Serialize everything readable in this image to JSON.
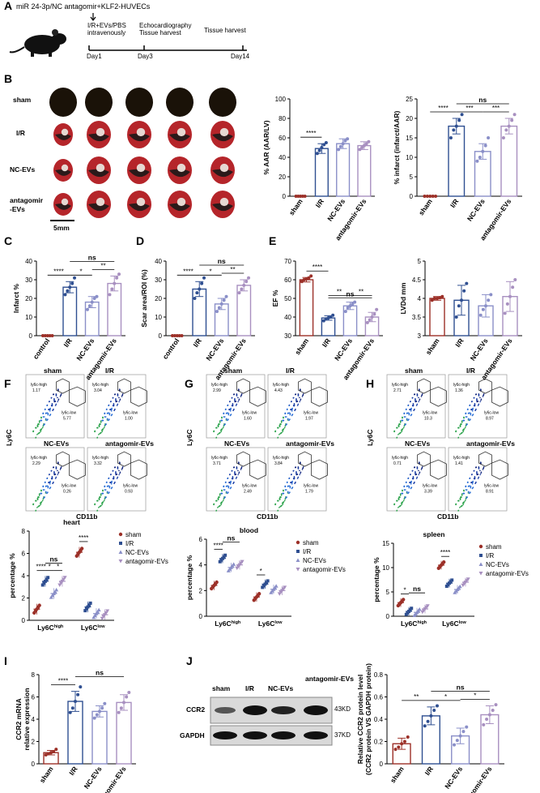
{
  "panel_labels": [
    "A",
    "B",
    "C",
    "D",
    "E",
    "F",
    "G",
    "H",
    "I",
    "J"
  ],
  "panel_a": {
    "title": "miR 24-3p/NC antagomir+KLF2-HUVECs",
    "step1_line1": "I/R+EVs/PBS",
    "step1_line2": "intravenously",
    "step2_line1": "Echocardiography",
    "step2_line2": "Tissue harvest",
    "step3": "Tissue harvest",
    "days": [
      "Day1",
      "Day3",
      "Day14"
    ]
  },
  "panel_b": {
    "row_labels": [
      "sham",
      "I/R",
      "NC-EVs",
      "antagomir",
      "-EVs"
    ],
    "scale_bar": "5mm"
  },
  "flow": {
    "x_label": "CD11b",
    "y_label": "Ly6C",
    "group_titles": [
      "sham",
      "I/R",
      "NC-EVs",
      "antagomir-EVs"
    ],
    "gate_high": "ly6c-high",
    "gate_low": "ly6c-low",
    "F": {
      "values": [
        "1.17",
        "5.77",
        "3.04",
        "1.00",
        "2.29",
        "0.26",
        "3.32",
        "0.93"
      ]
    },
    "G": {
      "values": [
        "2.99",
        "1.60",
        "4.43",
        "1.97",
        "3.71",
        "2.49",
        "3.84",
        "1.79"
      ]
    },
    "H": {
      "values": [
        "2.71",
        "10.3",
        "1.36",
        "8.97",
        "0.71",
        "3.39",
        "1.41",
        "8.91"
      ]
    }
  },
  "western": {
    "lanes": [
      "sham",
      "I/R",
      "NC-EVs",
      "antagomir-EVs"
    ],
    "bands": [
      "CCR2",
      "GAPDH"
    ],
    "kd": [
      "43KD",
      "37KD"
    ]
  },
  "chart_data": [
    {
      "id": "B_aar",
      "type": "bar",
      "categories": [
        "sham",
        "I/R",
        "NC-EVs",
        "antagomir-EVs"
      ],
      "values": [
        0,
        49,
        54,
        52
      ],
      "errors": [
        0,
        5,
        5,
        4
      ],
      "points": [
        [
          0,
          0,
          0,
          0,
          0
        ],
        [
          44,
          47,
          50,
          53,
          55
        ],
        [
          48,
          51,
          54,
          57,
          59
        ],
        [
          48,
          50,
          52,
          54,
          56
        ]
      ],
      "ylabel": "% AAR (AAR/LV)",
      "ylim": [
        0,
        100
      ],
      "ticks": [
        0,
        20,
        40,
        60,
        80,
        100
      ],
      "sig": [
        {
          "a": 0,
          "b": 1,
          "text": "****"
        }
      ]
    },
    {
      "id": "B_inf",
      "type": "bar",
      "categories": [
        "sham",
        "I/R",
        "NC-EVs",
        "antagomir-EVs"
      ],
      "values": [
        0,
        18,
        11.5,
        18
      ],
      "errors": [
        0,
        2,
        2,
        2
      ],
      "points": [
        [
          0,
          0,
          0,
          0,
          0
        ],
        [
          15,
          17,
          18,
          19.5,
          21
        ],
        [
          9,
          10,
          11.5,
          13,
          15
        ],
        [
          15,
          17,
          18,
          19.5,
          21
        ]
      ],
      "ylabel": "% infarct (infarct/AAR)",
      "ylim": [
        0,
        25
      ],
      "ticks": [
        0,
        5,
        10,
        15,
        20,
        25
      ],
      "sig": [
        {
          "a": 0,
          "b": 1,
          "text": "****"
        },
        {
          "a": 1,
          "b": 2,
          "text": "***"
        },
        {
          "a": 2,
          "b": 3,
          "text": "***"
        },
        {
          "a": 1,
          "b": 3,
          "text": "ns"
        }
      ]
    },
    {
      "id": "C",
      "type": "bar",
      "categories": [
        "control",
        "I/R",
        "NC-EVs",
        "antagomir-EVs"
      ],
      "values": [
        0,
        26,
        18,
        28
      ],
      "errors": [
        0,
        3,
        3,
        4
      ],
      "points": [
        [
          0,
          0,
          0,
          0,
          0
        ],
        [
          22,
          24,
          26,
          28,
          31
        ],
        [
          14,
          16,
          18,
          20,
          21
        ],
        [
          22,
          25,
          28,
          31,
          33
        ]
      ],
      "ylabel": "Infarct %",
      "ylim": [
        0,
        40
      ],
      "ticks": [
        0,
        10,
        20,
        30,
        40
      ],
      "sig": [
        {
          "a": 0,
          "b": 1,
          "text": "****"
        },
        {
          "a": 1,
          "b": 2,
          "text": "*"
        },
        {
          "a": 2,
          "b": 3,
          "text": "**"
        },
        {
          "a": 1,
          "b": 3,
          "text": "ns"
        }
      ]
    },
    {
      "id": "D",
      "type": "bar",
      "categories": [
        "control",
        "I/R",
        "NC-EVs",
        "antagomir-EVs"
      ],
      "values": [
        0,
        25,
        17,
        27
      ],
      "errors": [
        0,
        4,
        3,
        3
      ],
      "points": [
        [
          0,
          0,
          0,
          0,
          0
        ],
        [
          20,
          23,
          25,
          28,
          31
        ],
        [
          13,
          15,
          17,
          19,
          21
        ],
        [
          23,
          25,
          27,
          29,
          31
        ]
      ],
      "ylabel": "Scar area/ROI (%)",
      "ylim": [
        0,
        40
      ],
      "ticks": [
        0,
        10,
        20,
        30,
        40
      ],
      "sig": [
        {
          "a": 0,
          "b": 1,
          "text": "****"
        },
        {
          "a": 1,
          "b": 2,
          "text": "*"
        },
        {
          "a": 2,
          "b": 3,
          "text": "**"
        },
        {
          "a": 1,
          "b": 3,
          "text": "ns"
        }
      ]
    },
    {
      "id": "E_ef",
      "type": "bar",
      "categories": [
        "sham",
        "I/R",
        "NC-EVs",
        "antagomir-EVs"
      ],
      "values": [
        60,
        39.5,
        46,
        40
      ],
      "errors": [
        1.2,
        1.2,
        2,
        2.5
      ],
      "points": [
        [
          59,
          60,
          60.5,
          61,
          62
        ],
        [
          38,
          39,
          39.5,
          40,
          41
        ],
        [
          43,
          45,
          46,
          47,
          48
        ],
        [
          37,
          38.5,
          40,
          41.5,
          44
        ]
      ],
      "ylabel": "EF %",
      "ylim": [
        30,
        70
      ],
      "ticks": [
        30,
        40,
        50,
        60,
        70
      ],
      "sig": [
        {
          "a": 0,
          "b": 1,
          "text": "****"
        },
        {
          "a": 1,
          "b": 2,
          "text": "**"
        },
        {
          "a": 2,
          "b": 3,
          "text": "**"
        },
        {
          "a": 1,
          "b": 3,
          "text": "ns"
        }
      ]
    },
    {
      "id": "E_lvdd",
      "type": "bar",
      "categories": [
        "sham",
        "I/R",
        "NC-EVs",
        "antagomir-EVs"
      ],
      "values": [
        4.0,
        3.95,
        3.8,
        4.05
      ],
      "errors": [
        0.05,
        0.4,
        0.3,
        0.4
      ],
      "points": [
        [
          3.95,
          4.0,
          4.0,
          4.02,
          4.05
        ],
        [
          3.5,
          3.8,
          3.95,
          4.2,
          4.4
        ],
        [
          3.55,
          3.7,
          3.8,
          3.95,
          4.1
        ],
        [
          3.6,
          3.85,
          4.05,
          4.3,
          4.5
        ]
      ],
      "ylabel": "LVDd mm",
      "ylim": [
        3.0,
        5.0
      ],
      "ticks": [
        3.0,
        3.5,
        4.0,
        4.5,
        5.0
      ],
      "sig": []
    },
    {
      "id": "heart",
      "type": "scatter",
      "title": "heart",
      "groups": [
        "Ly6C^high",
        "Ly6C^low"
      ],
      "series": [
        {
          "name": "sham",
          "values": [
            1.0,
            6.1
          ]
        },
        {
          "name": "I/R",
          "values": [
            3.5,
            1.2
          ]
        },
        {
          "name": "NC-EVs",
          "values": [
            2.4,
            0.6
          ]
        },
        {
          "name": "antagomir-EVs",
          "values": [
            3.5,
            0.5
          ]
        }
      ],
      "ylabel": "percentage %",
      "ylim": [
        0,
        8
      ],
      "ticks": [
        0,
        2,
        4,
        6,
        8
      ],
      "sig": [
        {
          "g": 0,
          "a": 0,
          "b": 1,
          "text": "****"
        },
        {
          "g": 0,
          "a": 1,
          "b": 2,
          "text": "*"
        },
        {
          "g": 0,
          "a": 2,
          "b": 3,
          "text": "*"
        },
        {
          "g": 0,
          "a": 1,
          "b": 3,
          "text": "ns"
        },
        {
          "g": 1,
          "a": 0,
          "b": 1,
          "text": "****"
        }
      ]
    },
    {
      "id": "blood",
      "type": "scatter",
      "title": "blood",
      "groups": [
        "Ly6C^high",
        "Ly6C^low"
      ],
      "series": [
        {
          "name": "sham",
          "values": [
            2.4,
            1.5
          ]
        },
        {
          "name": "I/R",
          "values": [
            4.5,
            2.5
          ]
        },
        {
          "name": "NC-EVs",
          "values": [
            3.8,
            2.1
          ]
        },
        {
          "name": "antagomir-EVs",
          "values": [
            4.0,
            2.0
          ]
        }
      ],
      "ylabel": "percentage %",
      "ylim": [
        0,
        6
      ],
      "ticks": [
        0,
        2,
        4,
        6
      ],
      "sig": [
        {
          "g": 0,
          "a": 0,
          "b": 1,
          "text": "****"
        },
        {
          "g": 0,
          "a": 1,
          "b": 3,
          "text": "ns"
        },
        {
          "g": 1,
          "a": 0,
          "b": 1,
          "text": "*"
        }
      ]
    },
    {
      "id": "spleen",
      "type": "scatter",
      "title": "spleen",
      "groups": [
        "Ly6C^high",
        "Ly6C^low"
      ],
      "series": [
        {
          "name": "sham",
          "values": [
            2.8,
            10.5
          ]
        },
        {
          "name": "I/R",
          "values": [
            1.0,
            6.8
          ]
        },
        {
          "name": "NC-EVs",
          "values": [
            0.8,
            5.5
          ]
        },
        {
          "name": "antagomir-EVs",
          "values": [
            1.5,
            7.0
          ]
        }
      ],
      "ylabel": "percentage %",
      "ylim": [
        0,
        15
      ],
      "ticks": [
        0,
        5,
        10,
        15
      ],
      "sig": [
        {
          "g": 0,
          "a": 0,
          "b": 1,
          "text": "*"
        },
        {
          "g": 0,
          "a": 1,
          "b": 3,
          "text": "ns"
        },
        {
          "g": 1,
          "a": 0,
          "b": 1,
          "text": "****"
        }
      ]
    },
    {
      "id": "I",
      "type": "bar",
      "categories": [
        "sham",
        "I/R",
        "NC-EVs",
        "antagomir-EVs"
      ],
      "values": [
        1.0,
        5.6,
        4.7,
        5.5
      ],
      "errors": [
        0.2,
        0.9,
        0.5,
        0.7
      ],
      "points": [
        [
          0.8,
          0.9,
          1.0,
          1.1,
          1.3
        ],
        [
          4.6,
          5.0,
          5.6,
          6.2,
          6.9
        ],
        [
          4.1,
          4.4,
          4.7,
          5.0,
          5.4
        ],
        [
          4.6,
          5.0,
          5.5,
          6.0,
          6.4
        ]
      ],
      "ylabel": "CCR2 mRNA relative expression",
      "ylim": [
        0,
        8
      ],
      "ticks": [
        0,
        2,
        4,
        6,
        8
      ],
      "sig": [
        {
          "a": 0,
          "b": 1,
          "text": "****"
        },
        {
          "a": 1,
          "b": 3,
          "text": "ns"
        }
      ]
    },
    {
      "id": "J",
      "type": "bar",
      "categories": [
        "sham",
        "I/R",
        "NC-EVs",
        "antagomir-EVs"
      ],
      "values": [
        0.18,
        0.43,
        0.25,
        0.44
      ],
      "errors": [
        0.05,
        0.08,
        0.07,
        0.08
      ],
      "points": [
        [
          0.13,
          0.15,
          0.18,
          0.2,
          0.24
        ],
        [
          0.34,
          0.38,
          0.43,
          0.48,
          0.52
        ],
        [
          0.17,
          0.21,
          0.25,
          0.29,
          0.33
        ],
        [
          0.35,
          0.4,
          0.44,
          0.48,
          0.53
        ]
      ],
      "ylabel": "Relative CCR2 protein level (CCR2 protein VS GAPDH protein)",
      "ylim": [
        0,
        0.8
      ],
      "ticks": [
        0,
        0.2,
        0.4,
        0.6,
        0.8
      ],
      "sig": [
        {
          "a": 0,
          "b": 1,
          "text": "**"
        },
        {
          "a": 1,
          "b": 2,
          "text": "*"
        },
        {
          "a": 2,
          "b": 3,
          "text": "*"
        },
        {
          "a": 1,
          "b": 3,
          "text": "ns"
        }
      ]
    }
  ]
}
